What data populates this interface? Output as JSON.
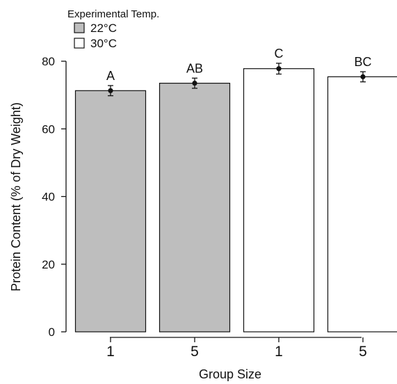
{
  "chart_data": {
    "type": "bar",
    "xlabel": "Group Size",
    "ylabel": "Protein Content (% of Dry Weight)",
    "ylim": [
      0,
      80
    ],
    "yticks": [
      "0",
      "20",
      "40",
      "60",
      "80"
    ],
    "grid": false,
    "legend": {
      "title": "Experimental Temp.",
      "placement": "top-left",
      "entries": [
        {
          "label": "22°C",
          "color": "#bebebe"
        },
        {
          "label": "30°C",
          "color": "#ffffff"
        }
      ]
    },
    "bars": [
      {
        "category": "1",
        "temp": "22°C",
        "value": 71.3,
        "error": 1.5,
        "letter": "A"
      },
      {
        "category": "5",
        "temp": "22°C",
        "value": 73.5,
        "error": 1.5,
        "letter": "AB"
      },
      {
        "category": "1",
        "temp": "30°C",
        "value": 77.8,
        "error": 1.6,
        "letter": "C"
      },
      {
        "category": "5",
        "temp": "30°C",
        "value": 75.4,
        "error": 1.5,
        "letter": "BC"
      }
    ]
  }
}
